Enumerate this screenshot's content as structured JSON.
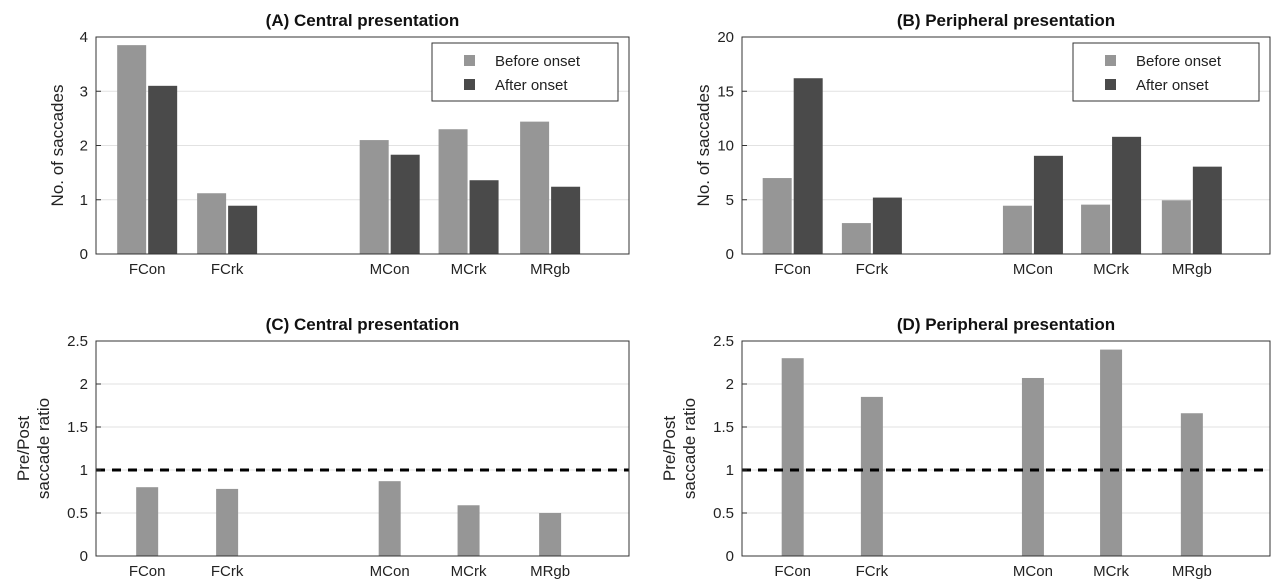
{
  "chart_data": [
    {
      "id": "A",
      "type": "bar",
      "title": "(A) Central presentation",
      "ylabel": "No. of saccades",
      "ylim": [
        0,
        4
      ],
      "yticks": [
        0,
        1,
        2,
        3,
        4
      ],
      "categories": [
        "FCon",
        "FCrk",
        "",
        "MCon",
        "MCrk",
        "MRgb"
      ],
      "series": [
        {
          "name": "Before onset",
          "color": "#969696",
          "values": [
            3.85,
            1.12,
            null,
            2.1,
            2.3,
            2.44
          ]
        },
        {
          "name": "After onset",
          "color": "#4a4a4a",
          "values": [
            3.1,
            0.89,
            null,
            1.83,
            1.36,
            1.24
          ]
        }
      ],
      "grid": true,
      "legend": "top-right"
    },
    {
      "id": "B",
      "type": "bar",
      "title": "(B) Peripheral presentation",
      "ylabel": "No. of saccades",
      "ylim": [
        0,
        20
      ],
      "yticks": [
        0,
        5,
        10,
        15,
        20
      ],
      "categories": [
        "FCon",
        "FCrk",
        "",
        "MCon",
        "MCrk",
        "MRgb"
      ],
      "series": [
        {
          "name": "Before onset",
          "color": "#969696",
          "values": [
            7.0,
            2.85,
            null,
            4.45,
            4.55,
            4.95
          ]
        },
        {
          "name": "After onset",
          "color": "#4a4a4a",
          "values": [
            16.2,
            5.2,
            null,
            9.05,
            10.8,
            8.05
          ]
        }
      ],
      "grid": true,
      "legend": "top-right"
    },
    {
      "id": "C",
      "type": "bar",
      "title": "(C) Central presentation",
      "ylabel": [
        "Pre/Post",
        "saccade ratio"
      ],
      "ylim": [
        0,
        2.5
      ],
      "yticks": [
        0,
        0.5,
        1,
        1.5,
        2,
        2.5
      ],
      "categories": [
        "FCon",
        "FCrk",
        "",
        "MCon",
        "MCrk",
        "MRgb"
      ],
      "series": [
        {
          "color": "#969696",
          "values": [
            0.8,
            0.78,
            null,
            0.87,
            0.59,
            0.5
          ]
        }
      ],
      "reference_line": 1,
      "grid": true
    },
    {
      "id": "D",
      "type": "bar",
      "title": "(D) Peripheral presentation",
      "ylabel": [
        "Pre/Post",
        "saccade ratio"
      ],
      "ylim": [
        0,
        2.5
      ],
      "yticks": [
        0,
        0.5,
        1,
        1.5,
        2,
        2.5
      ],
      "categories": [
        "FCon",
        "FCrk",
        "",
        "MCon",
        "MCrk",
        "MRgb"
      ],
      "series": [
        {
          "color": "#969696",
          "values": [
            2.3,
            1.85,
            null,
            2.07,
            2.4,
            1.66
          ]
        }
      ],
      "reference_line": 1,
      "grid": true
    }
  ]
}
